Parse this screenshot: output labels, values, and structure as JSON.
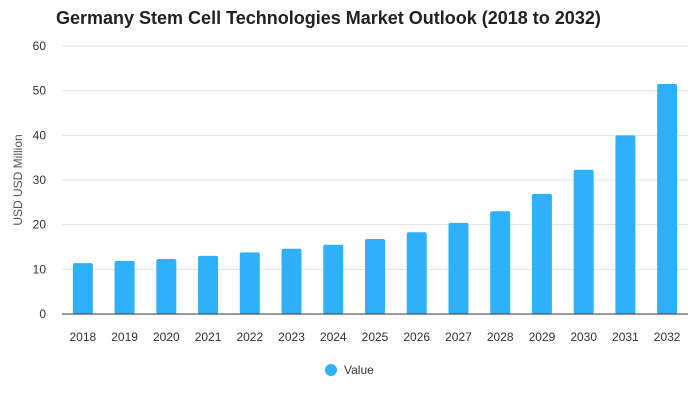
{
  "chart_data": {
    "type": "bar",
    "title": "Germany Stem Cell Technologies Market Outlook (2018 to 2032)",
    "xlabel": "",
    "ylabel": "USD USD Million",
    "ylim": [
      0,
      60
    ],
    "yticks": [
      0,
      10,
      20,
      30,
      40,
      50,
      60
    ],
    "grid": true,
    "legend_position": "bottom-center",
    "categories": [
      "2018",
      "2019",
      "2020",
      "2021",
      "2022",
      "2023",
      "2024",
      "2025",
      "2026",
      "2027",
      "2028",
      "2029",
      "2030",
      "2031",
      "2032"
    ],
    "series": [
      {
        "name": "Value",
        "color": "#2fb0fb",
        "values": [
          11.4,
          11.9,
          12.3,
          13.0,
          13.8,
          14.6,
          15.5,
          16.8,
          18.3,
          20.4,
          23.0,
          26.9,
          32.3,
          40.0,
          51.5
        ]
      }
    ]
  }
}
